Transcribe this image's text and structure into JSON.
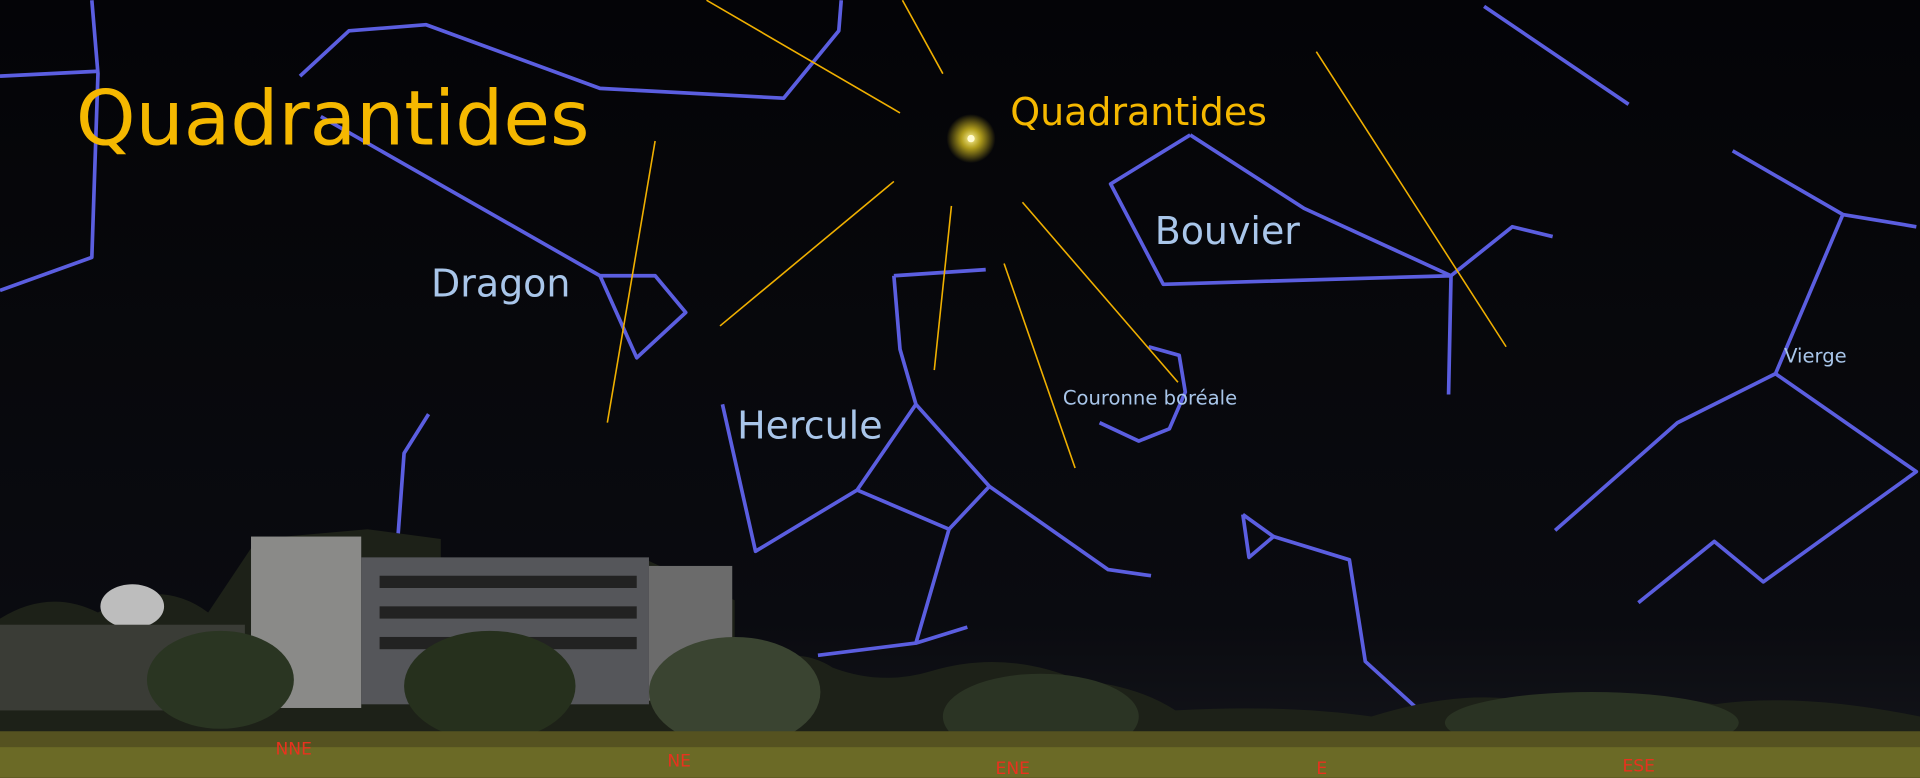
{
  "title": "Quadrantides",
  "radiant": {
    "label": "Quadrantides"
  },
  "constellations": [
    {
      "label": "Dragon"
    },
    {
      "label": "Bouvier"
    },
    {
      "label": "Hercule"
    },
    {
      "label": "Couronne boréale"
    },
    {
      "label": "Vierge"
    }
  ],
  "compass": [
    "NNE",
    "NE",
    "ENE",
    "E",
    "ESE"
  ]
}
